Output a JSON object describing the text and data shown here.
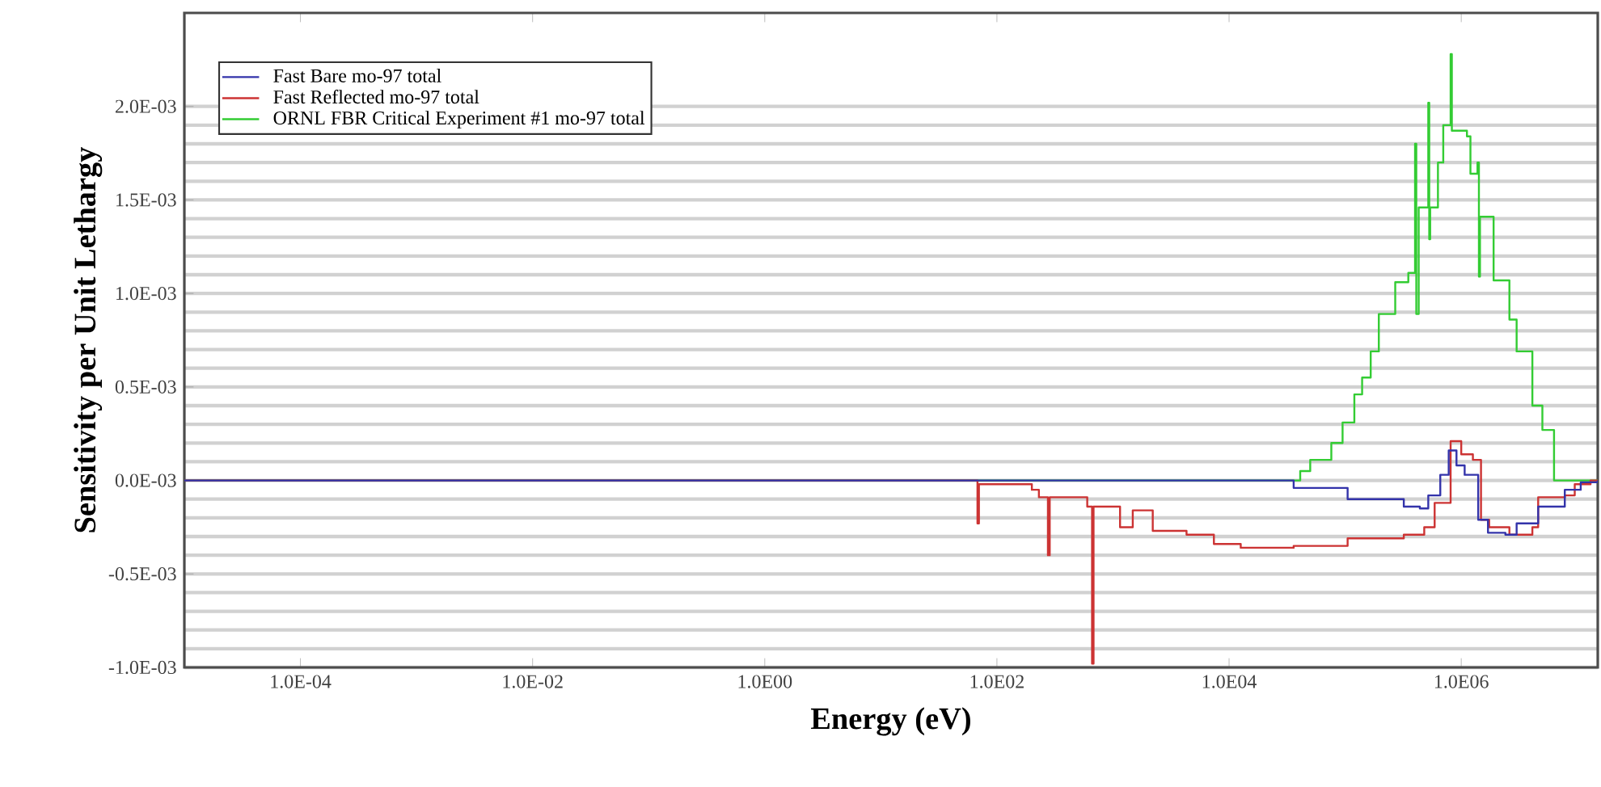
{
  "chart_data": {
    "type": "step",
    "xlabel": "Energy (eV)",
    "ylabel": "Sensitivity per Unit Lethargy",
    "log": "x",
    "xlim": [
      1e-05,
      15000000.0
    ],
    "ylim": [
      -0.001,
      0.0025
    ],
    "xticks": [
      {
        "value": 0.0001,
        "label": "1.0E-04"
      },
      {
        "value": 0.01,
        "label": "1.0E-02"
      },
      {
        "value": 1,
        "label": "1.0E00"
      },
      {
        "value": 100,
        "label": "1.0E02"
      },
      {
        "value": 10000,
        "label": "1.0E04"
      },
      {
        "value": 1000000,
        "label": "1.0E06"
      }
    ],
    "yticks": [
      {
        "value": -0.001,
        "label": "-1.0E-03"
      },
      {
        "value": -0.0005,
        "label": "-0.5E-03"
      },
      {
        "value": 0,
        "label": "0.0E-03"
      },
      {
        "value": 0.0005,
        "label": "0.5E-03"
      },
      {
        "value": 0.001,
        "label": "1.0E-03"
      },
      {
        "value": 0.0015,
        "label": "1.5E-03"
      },
      {
        "value": 0.002,
        "label": "2.0E-03"
      }
    ],
    "grid": "y",
    "legend": "top left",
    "series": [
      {
        "name": "Fast Bare mo-97 total",
        "color": "#3333aa",
        "x": [
          1e-05,
          8000,
          36000,
          105000,
          320000,
          440000,
          520000,
          660000,
          780000,
          910000,
          1070000,
          1400000,
          1700000,
          2400000,
          3000000,
          4100000,
          4600000,
          6300000,
          7800000,
          10700000,
          15000000
        ],
        "values": [
          0,
          0,
          -4e-05,
          -0.0001,
          -0.00014,
          -0.00015,
          -8e-05,
          3e-05,
          0.00016,
          8e-05,
          3e-05,
          -0.00021,
          -0.00028,
          -0.00029,
          -0.00023,
          -0.00023,
          -0.00014,
          -0.00014,
          -5e-05,
          -1e-05,
          0
        ]
      },
      {
        "name": "Fast Reflected mo-97 total",
        "color": "#cc3333",
        "x": [
          1e-05,
          68,
          70,
          200,
          230,
          275,
          285,
          600,
          660,
          680,
          1150,
          1480,
          2200,
          4300,
          7400,
          12600,
          36000,
          105000,
          320000,
          480000,
          590000,
          810000,
          1000000,
          1260000,
          1480000,
          1740000,
          2600000,
          4100000,
          4600000,
          7800000,
          9500000,
          13000000,
          15000000
        ],
        "values": [
          0,
          -0.00023,
          -2e-05,
          -5e-05,
          -9e-05,
          -0.0004,
          -9e-05,
          -0.00014,
          -0.00098,
          -0.00014,
          -0.00025,
          -0.00016,
          -0.00027,
          -0.00029,
          -0.00034,
          -0.00036,
          -0.00035,
          -0.00031,
          -0.00029,
          -0.00025,
          -0.00012,
          0.00021,
          0.00014,
          0.00011,
          -0.00021,
          -0.00025,
          -0.00029,
          -0.00025,
          -9e-05,
          -8e-05,
          -2e-05,
          0,
          0
        ]
      },
      {
        "name": "ORNL FBR Critical Experiment #1 mo-97 total",
        "color": "#33cc33",
        "x": [
          1e-05,
          21000,
          41000,
          50000,
          76000,
          95000,
          120000,
          140000,
          166000,
          195000,
          270000,
          350000,
          400000,
          410000,
          430000,
          520000,
          530000,
          540000,
          630000,
          700000,
          810000,
          830000,
          1120000,
          1200000,
          1380000,
          1420000,
          1450000,
          1900000,
          2600000,
          3000000,
          4100000,
          5000000,
          6300000,
          15000000
        ],
        "values": [
          0,
          0,
          5e-05,
          0.00011,
          0.0002,
          0.00031,
          0.00046,
          0.00055,
          0.00069,
          0.00089,
          0.00106,
          0.00111,
          0.0018,
          0.00089,
          0.00146,
          0.00202,
          0.00129,
          0.00146,
          0.0017,
          0.0019,
          0.00228,
          0.00187,
          0.00184,
          0.00164,
          0.0017,
          0.00109,
          0.00141,
          0.00107,
          0.00086,
          0.00069,
          0.0004,
          0.00027,
          0,
          0
        ]
      }
    ]
  }
}
